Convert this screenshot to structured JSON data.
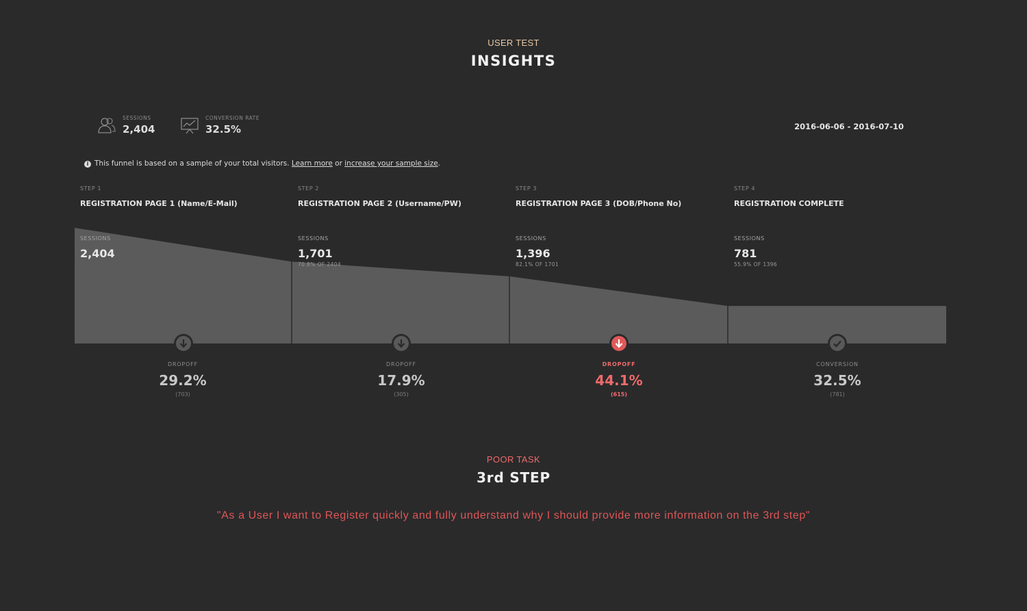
{
  "header": {
    "eyebrow": "USER TEST",
    "title": "INSIGHTS"
  },
  "summary": {
    "sessions_label": "SESSIONS",
    "sessions_value": "2,404",
    "conversion_label": "CONVERSION RATE",
    "conversion_value": "32.5%",
    "date_range": "2016-06-06 - 2016-07-10"
  },
  "notice": {
    "text": "This funnel is based on a sample of your total visitors.",
    "learn_more": "Learn more",
    "or": "or",
    "increase": "increase your sample size",
    "end": "."
  },
  "steps": [
    {
      "num": "STEP 1",
      "name": "REGISTRATION PAGE 1 (Name/E-Mail)",
      "sessions_label": "SESSIONS",
      "sessions": "2,404",
      "pct_of_prev": "",
      "sessions_value": 2404,
      "outcome_label": "DROPOFF",
      "outcome_pct": "29.2%",
      "outcome_count": "(703)",
      "highlight": false,
      "icon": "arrow-down-icon"
    },
    {
      "num": "STEP 2",
      "name": "REGISTRATION PAGE 2 (Username/PW)",
      "sessions_label": "SESSIONS",
      "sessions": "1,701",
      "pct_of_prev": "70.8% OF 2404",
      "sessions_value": 1701,
      "outcome_label": "DROPOFF",
      "outcome_pct": "17.9%",
      "outcome_count": "(305)",
      "highlight": false,
      "icon": "arrow-down-icon"
    },
    {
      "num": "STEP 3",
      "name": "REGISTRATION PAGE 3 (DOB/Phone No)",
      "sessions_label": "SESSIONS",
      "sessions": "1,396",
      "pct_of_prev": "82.1% OF 1701",
      "sessions_value": 1396,
      "outcome_label": "DROPOFF",
      "outcome_pct": "44.1%",
      "outcome_count": "(615)",
      "highlight": true,
      "icon": "arrow-down-icon"
    },
    {
      "num": "STEP 4",
      "name": "REGISTRATION COMPLETE",
      "sessions_label": "SESSIONS",
      "sessions": "781",
      "pct_of_prev": "55.9% OF 1396",
      "sessions_value": 781,
      "outcome_label": "CONVERSION",
      "outcome_pct": "32.5%",
      "outcome_count": "(781)",
      "highlight": false,
      "icon": "check-icon"
    }
  ],
  "task": {
    "label": "POOR TASK",
    "title": "3rd STEP",
    "quote": "\"As a User I want to Register quickly and fully understand why I should provide more information on the 3rd step\""
  },
  "colors": {
    "background": "#2a2a2b",
    "funnel": "#5b5b5b",
    "highlight": "#e05a5a",
    "accent": "#e8c9a6"
  }
}
